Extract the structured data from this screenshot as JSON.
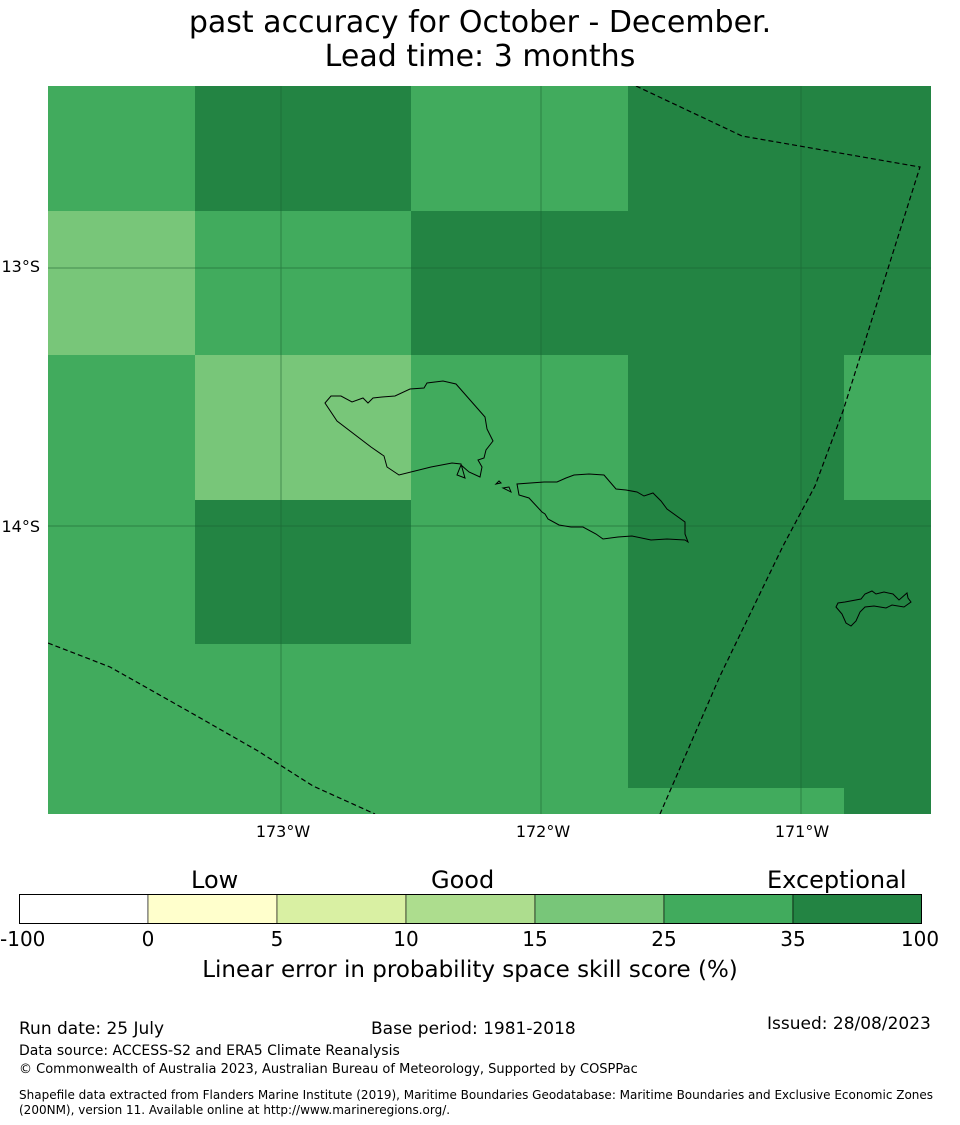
{
  "title": {
    "line2": "past accuracy for October - December.",
    "line3": "Lead time: 3 months"
  },
  "map": {
    "longitude_labels": [
      "173°W",
      "172°W",
      "171°W"
    ],
    "latitude_labels": [
      "13°S",
      "14°S"
    ],
    "colors": {
      "cat_25_35": "#78c679",
      "cat_35_100_mid": "#41ab5d",
      "cat_35_100_high": "#238443"
    },
    "grid_categories": [
      [
        "cat_35_100_mid",
        "cat_35_100_high",
        "cat_35_100_high",
        "cat_35_100_mid",
        "cat_35_100_mid",
        "cat_35_100_high",
        "cat_35_100_high",
        "cat_35_100_high"
      ],
      [
        "cat_25_35",
        "cat_35_100_mid",
        "cat_35_100_mid",
        "cat_35_100_high",
        "cat_35_100_high",
        "cat_35_100_high",
        "cat_35_100_high",
        "cat_35_100_high"
      ],
      [
        "cat_35_100_mid",
        "cat_25_35",
        "cat_25_35",
        "cat_35_100_mid",
        "cat_35_100_mid",
        "cat_35_100_high",
        "cat_35_100_high",
        "cat_35_100_mid"
      ],
      [
        "cat_35_100_mid",
        "cat_35_100_high",
        "cat_35_100_high",
        "cat_35_100_mid",
        "cat_35_100_mid",
        "cat_35_100_high",
        "cat_35_100_high",
        "cat_35_100_high"
      ],
      [
        "cat_35_100_mid",
        "cat_35_100_mid",
        "cat_35_100_mid",
        "cat_35_100_mid",
        "cat_35_100_mid",
        "cat_35_100_high",
        "cat_35_100_high",
        "cat_35_100_high"
      ],
      [
        "cat_35_100_mid",
        "cat_35_100_mid",
        "cat_35_100_mid",
        "cat_35_100_mid",
        "cat_35_100_mid",
        "cat_35_100_mid",
        "cat_35_100_mid",
        "cat_35_100_high"
      ]
    ]
  },
  "colorbar": {
    "categories": [
      "Low",
      "Good",
      "Exceptional"
    ],
    "ticks": [
      "-100",
      "0",
      "5",
      "10",
      "15",
      "25",
      "35",
      "100"
    ],
    "colors": [
      "#ffffff",
      "#ffffcc",
      "#d9f0a3",
      "#addd8e",
      "#78c679",
      "#41ab5d",
      "#238443"
    ],
    "title": "Linear error in probability space skill score (%)"
  },
  "footer": {
    "run_date": "Run date: 25 July",
    "base_period": "Base period: 1981-2018",
    "issued": "Issued: 28/08/2023",
    "data_source": "Data source: ACCESS-S2 and ERA5 Climate Reanalysis",
    "copyright": "© Commonwealth of Australia 2023, Australian Bureau of Meteorology, Supported by COSPPac",
    "shapefile_note": "Shapefile data extracted from Flanders Marine Institute (2019), Maritime Boundaries Geodatabase: Maritime Boundaries and Exclusive Economic Zones (200NM), version 11. Available online at http://www.marineregions.org/."
  }
}
